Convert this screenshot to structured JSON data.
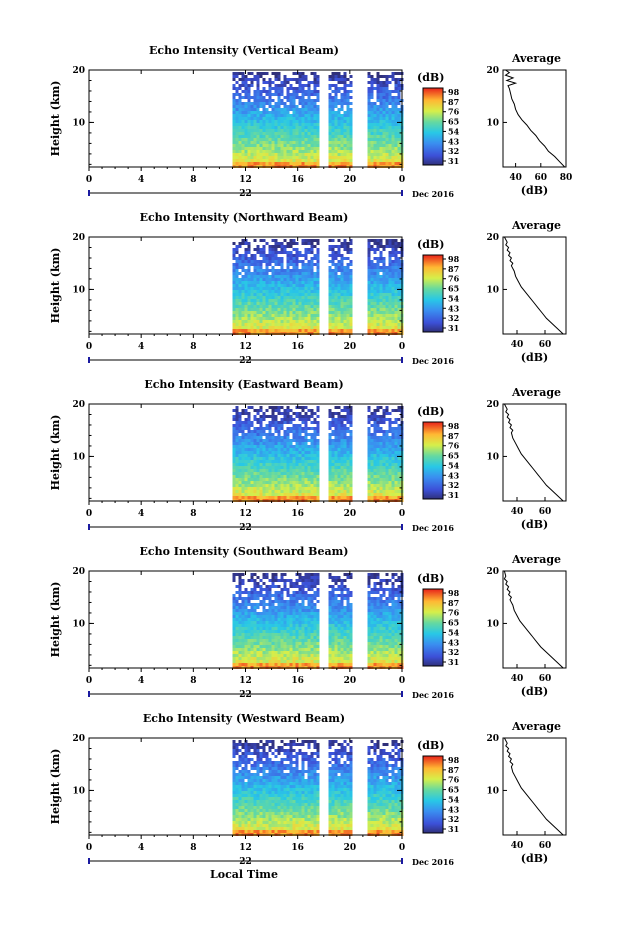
{
  "figure": {
    "x_axis_label": "Local Time",
    "month_label": "Dec 2016",
    "day_label": "22",
    "y_axis_label": "Height (km)",
    "colorbar_unit": "(dB)",
    "colorbar_ticks": [
      "31",
      "32",
      "43",
      "54",
      "65",
      "76",
      "87",
      "98"
    ],
    "average_title": "Average",
    "average_xlabel": "(dB)"
  },
  "chart_data": [
    {
      "type": "heatmap",
      "title": "Echo Intensity (Vertical Beam)",
      "ylabel": "Height (km)",
      "xlabel": "Local Time",
      "x_ticks": [
        "0",
        "4",
        "8",
        "12",
        "16",
        "20",
        "0"
      ],
      "y_ticks": [
        "10",
        "20"
      ],
      "xlim": [
        0,
        24
      ],
      "ylim": [
        1.5,
        20
      ],
      "data_start_hour": 11.0,
      "data_gaps_hours": [
        [
          17.9,
          18.3
        ],
        [
          20.4,
          21.3
        ]
      ],
      "colorbar": {
        "unit": "(dB)",
        "ticks": [
          "31",
          "32",
          "43",
          "54",
          "65",
          "76",
          "87",
          "98"
        ],
        "range": [
          21,
          98
        ]
      },
      "average_profile": {
        "title": "Average",
        "xlabel": "(dB)",
        "x_ticks": [
          "40",
          "60",
          "80"
        ],
        "xlim": [
          30,
          80
        ],
        "y_ticks": [
          "10",
          "20"
        ],
        "ylim": [
          1.5,
          20
        ],
        "points": [
          [
            79,
            1.5
          ],
          [
            75,
            2.5
          ],
          [
            71,
            3.5
          ],
          [
            66,
            4.5
          ],
          [
            63,
            5.5
          ],
          [
            59,
            6.5
          ],
          [
            56,
            7.5
          ],
          [
            52,
            8.5
          ],
          [
            49,
            9.5
          ],
          [
            45,
            10.5
          ],
          [
            42,
            11.5
          ],
          [
            40,
            12.5
          ],
          [
            39,
            13.5
          ],
          [
            37,
            14.5
          ],
          [
            36,
            15.5
          ],
          [
            35,
            16.5
          ],
          [
            34,
            17
          ],
          [
            40,
            17.5
          ],
          [
            33,
            18
          ],
          [
            38,
            18.5
          ],
          [
            32,
            19
          ],
          [
            35,
            19.5
          ],
          [
            32,
            20
          ]
        ]
      }
    },
    {
      "type": "heatmap",
      "title": "Echo Intensity (Northward Beam)",
      "ylabel": "Height (km)",
      "xlabel": "Local Time",
      "x_ticks": [
        "0",
        "4",
        "8",
        "12",
        "16",
        "20",
        "0"
      ],
      "y_ticks": [
        "10",
        "20"
      ],
      "xlim": [
        0,
        24
      ],
      "ylim": [
        1.5,
        20
      ],
      "data_start_hour": 11.0,
      "data_gaps_hours": [
        [
          17.9,
          18.3
        ],
        [
          20.4,
          21.3
        ]
      ],
      "colorbar": {
        "unit": "(dB)",
        "ticks": [
          "31",
          "32",
          "43",
          "54",
          "65",
          "76",
          "87",
          "98"
        ],
        "range": [
          21,
          98
        ]
      },
      "average_profile": {
        "title": "Average",
        "xlabel": "(dB)",
        "x_ticks": [
          "40",
          "60"
        ],
        "xlim": [
          30,
          75
        ],
        "y_ticks": [
          "10",
          "20"
        ],
        "ylim": [
          1.5,
          20
        ],
        "points": [
          [
            73,
            1.5
          ],
          [
            69,
            2.5
          ],
          [
            65,
            3.5
          ],
          [
            61,
            4.5
          ],
          [
            58,
            5.5
          ],
          [
            55,
            6.5
          ],
          [
            52,
            7.5
          ],
          [
            49,
            8.5
          ],
          [
            46,
            9.5
          ],
          [
            43,
            10.5
          ],
          [
            41,
            11.5
          ],
          [
            39,
            12.5
          ],
          [
            38,
            13.5
          ],
          [
            36,
            14.5
          ],
          [
            37,
            15
          ],
          [
            35,
            15.5
          ],
          [
            36,
            16
          ],
          [
            34,
            16.5
          ],
          [
            35,
            17
          ],
          [
            33,
            17.5
          ],
          [
            34,
            18
          ],
          [
            32,
            18.5
          ],
          [
            33,
            19
          ],
          [
            31,
            20
          ]
        ]
      }
    },
    {
      "type": "heatmap",
      "title": "Echo Intensity (Eastward Beam)",
      "ylabel": "Height (km)",
      "xlabel": "Local Time",
      "x_ticks": [
        "0",
        "4",
        "8",
        "12",
        "16",
        "20",
        "0"
      ],
      "y_ticks": [
        "10",
        "20"
      ],
      "xlim": [
        0,
        24
      ],
      "ylim": [
        1.5,
        20
      ],
      "data_start_hour": 11.0,
      "data_gaps_hours": [
        [
          17.9,
          18.3
        ],
        [
          20.4,
          21.3
        ]
      ],
      "colorbar": {
        "unit": "(dB)",
        "ticks": [
          "31",
          "32",
          "43",
          "54",
          "65",
          "76",
          "87",
          "98"
        ],
        "range": [
          21,
          98
        ]
      },
      "average_profile": {
        "title": "Average",
        "xlabel": "(dB)",
        "x_ticks": [
          "40",
          "60"
        ],
        "xlim": [
          30,
          75
        ],
        "y_ticks": [
          "10",
          "20"
        ],
        "ylim": [
          1.5,
          20
        ],
        "points": [
          [
            73,
            1.5
          ],
          [
            69,
            2.5
          ],
          [
            65,
            3.5
          ],
          [
            61,
            4.5
          ],
          [
            58,
            5.5
          ],
          [
            55,
            6.5
          ],
          [
            52,
            7.5
          ],
          [
            49,
            8.5
          ],
          [
            46,
            9.5
          ],
          [
            43,
            10.5
          ],
          [
            41,
            11.5
          ],
          [
            39,
            12.5
          ],
          [
            37,
            13.5
          ],
          [
            36,
            14.5
          ],
          [
            37,
            15
          ],
          [
            35,
            15.5
          ],
          [
            36,
            16
          ],
          [
            34,
            16.5
          ],
          [
            35,
            17
          ],
          [
            33,
            17.5
          ],
          [
            34,
            18
          ],
          [
            32,
            18.5
          ],
          [
            33,
            19
          ],
          [
            31,
            20
          ]
        ]
      }
    },
    {
      "type": "heatmap",
      "title": "Echo Intensity (Southward Beam)",
      "ylabel": "Height (km)",
      "xlabel": "Local Time",
      "x_ticks": [
        "0",
        "4",
        "8",
        "12",
        "16",
        "20",
        "0"
      ],
      "y_ticks": [
        "10",
        "20"
      ],
      "xlim": [
        0,
        24
      ],
      "ylim": [
        1.5,
        20
      ],
      "data_start_hour": 11.0,
      "data_gaps_hours": [
        [
          17.9,
          18.3
        ],
        [
          20.4,
          21.3
        ]
      ],
      "colorbar": {
        "unit": "(dB)",
        "ticks": [
          "31",
          "32",
          "43",
          "54",
          "65",
          "76",
          "87",
          "98"
        ],
        "range": [
          21,
          98
        ]
      },
      "average_profile": {
        "title": "Average",
        "xlabel": "(dB)",
        "x_ticks": [
          "40",
          "60"
        ],
        "xlim": [
          30,
          75
        ],
        "y_ticks": [
          "10",
          "20"
        ],
        "ylim": [
          1.5,
          20
        ],
        "points": [
          [
            73,
            1.5
          ],
          [
            69,
            2.5
          ],
          [
            65,
            3.5
          ],
          [
            61,
            4.5
          ],
          [
            57,
            5.5
          ],
          [
            54,
            6.5
          ],
          [
            51,
            7.5
          ],
          [
            48,
            8.5
          ],
          [
            45,
            9.5
          ],
          [
            42,
            10.5
          ],
          [
            40,
            11.5
          ],
          [
            38,
            12.5
          ],
          [
            37,
            13.5
          ],
          [
            35,
            14.5
          ],
          [
            36,
            15
          ],
          [
            34,
            15.5
          ],
          [
            35,
            16
          ],
          [
            33,
            16.5
          ],
          [
            34,
            17
          ],
          [
            32,
            17.5
          ],
          [
            33,
            18
          ],
          [
            31,
            18.5
          ],
          [
            32,
            19
          ],
          [
            31,
            20
          ]
        ]
      }
    },
    {
      "type": "heatmap",
      "title": "Echo Intensity (Westward Beam)",
      "ylabel": "Height (km)",
      "xlabel": "Local Time",
      "x_ticks": [
        "0",
        "4",
        "8",
        "12",
        "16",
        "20",
        "0"
      ],
      "y_ticks": [
        "10",
        "20"
      ],
      "xlim": [
        0,
        24
      ],
      "ylim": [
        1.5,
        20
      ],
      "data_start_hour": 11.0,
      "data_gaps_hours": [
        [
          17.9,
          18.3
        ],
        [
          20.4,
          21.3
        ]
      ],
      "colorbar": {
        "unit": "(dB)",
        "ticks": [
          "31",
          "32",
          "43",
          "54",
          "65",
          "76",
          "87",
          "98"
        ],
        "range": [
          21,
          98
        ]
      },
      "average_profile": {
        "title": "Average",
        "xlabel": "(dB)",
        "x_ticks": [
          "40",
          "60"
        ],
        "xlim": [
          30,
          75
        ],
        "y_ticks": [
          "10",
          "20"
        ],
        "ylim": [
          1.5,
          20
        ],
        "points": [
          [
            73,
            1.5
          ],
          [
            69,
            2.5
          ],
          [
            65,
            3.5
          ],
          [
            61,
            4.5
          ],
          [
            58,
            5.5
          ],
          [
            55,
            6.5
          ],
          [
            52,
            7.5
          ],
          [
            49,
            8.5
          ],
          [
            46,
            9.5
          ],
          [
            43,
            10.5
          ],
          [
            41,
            11.5
          ],
          [
            39,
            12.5
          ],
          [
            37,
            13.5
          ],
          [
            36,
            14.5
          ],
          [
            37,
            15
          ],
          [
            35,
            15.5
          ],
          [
            36,
            16
          ],
          [
            34,
            16.5
          ],
          [
            35,
            17
          ],
          [
            33,
            17.5
          ],
          [
            34,
            18
          ],
          [
            32,
            18.5
          ],
          [
            33,
            19
          ],
          [
            31,
            20
          ]
        ]
      }
    }
  ]
}
